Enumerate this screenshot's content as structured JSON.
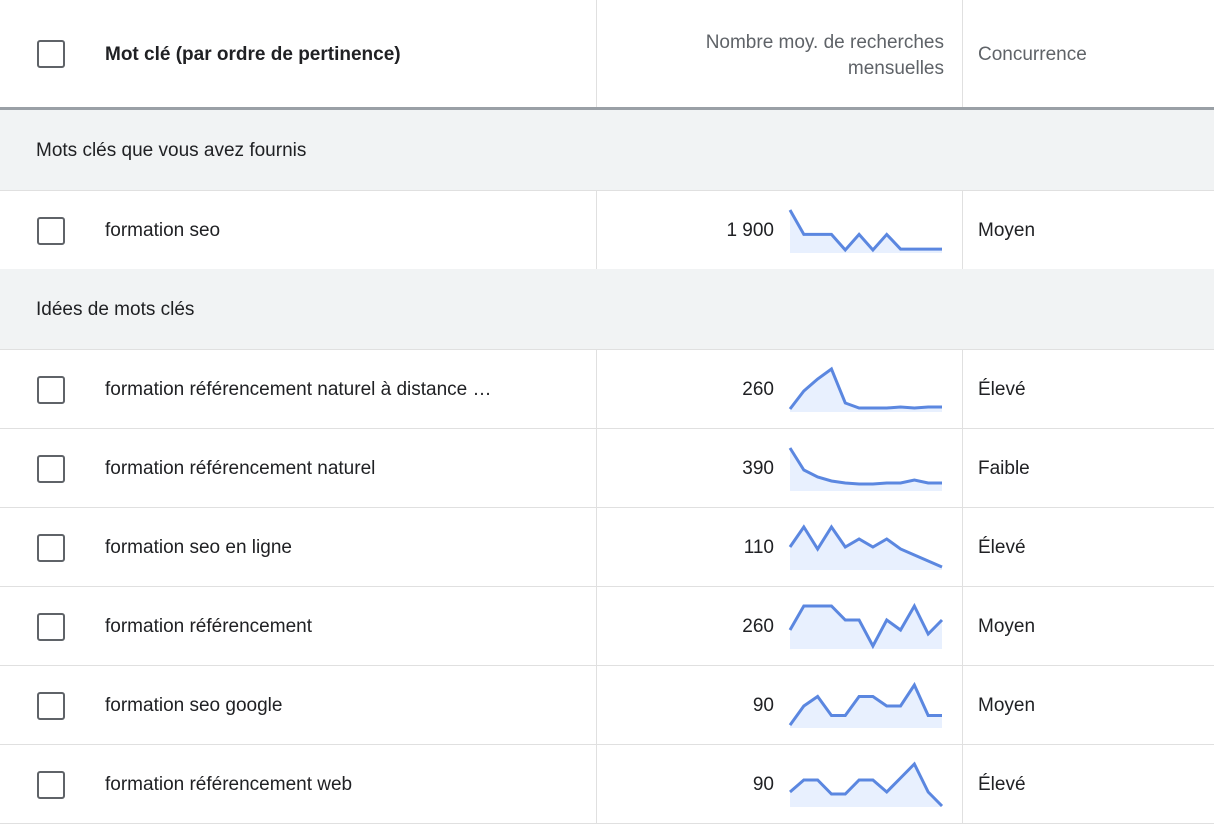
{
  "header": {
    "keyword": "Mot clé (par ordre de pertinence)",
    "searches": "Nombre moy. de recherches mensuelles",
    "competition": "Concurrence"
  },
  "sections": [
    {
      "title": "Mots clés que vous avez fournis",
      "rows": [
        {
          "keyword": "formation seo",
          "searches": "1 900",
          "trend": [
            43,
            18,
            18,
            18,
            2,
            18,
            2,
            18,
            3,
            3,
            3,
            3
          ],
          "competition": "Moyen"
        }
      ]
    },
    {
      "title": "Idées de mots clés",
      "rows": [
        {
          "keyword": "formation référencement naturel à distance …",
          "searches": "260",
          "trend": [
            2,
            20,
            32,
            42,
            8,
            3,
            3,
            3,
            4,
            3,
            4,
            4
          ],
          "competition": "Élevé"
        },
        {
          "keyword": "formation référencement naturel",
          "searches": "390",
          "trend": [
            42,
            20,
            13,
            9,
            7,
            6,
            6,
            7,
            7,
            10,
            7,
            7
          ],
          "competition": "Faible"
        },
        {
          "keyword": "formation seo en ligne",
          "searches": "110",
          "trend": [
            22,
            42,
            20,
            42,
            22,
            30,
            22,
            30,
            20,
            14,
            8,
            2
          ],
          "competition": "Élevé"
        },
        {
          "keyword": "formation référencement",
          "searches": "260",
          "trend": [
            18,
            42,
            42,
            42,
            28,
            28,
            2,
            28,
            18,
            42,
            14,
            28
          ],
          "competition": "Moyen"
        },
        {
          "keyword": "formation seo google",
          "searches": "90",
          "trend": [
            2,
            22,
            32,
            12,
            12,
            32,
            32,
            22,
            22,
            44,
            12,
            12
          ],
          "competition": "Moyen"
        },
        {
          "keyword": "formation référencement web",
          "searches": "90",
          "trend": [
            14,
            26,
            26,
            12,
            12,
            26,
            26,
            14,
            28,
            42,
            14,
            0
          ],
          "competition": "Élevé"
        }
      ]
    }
  ]
}
